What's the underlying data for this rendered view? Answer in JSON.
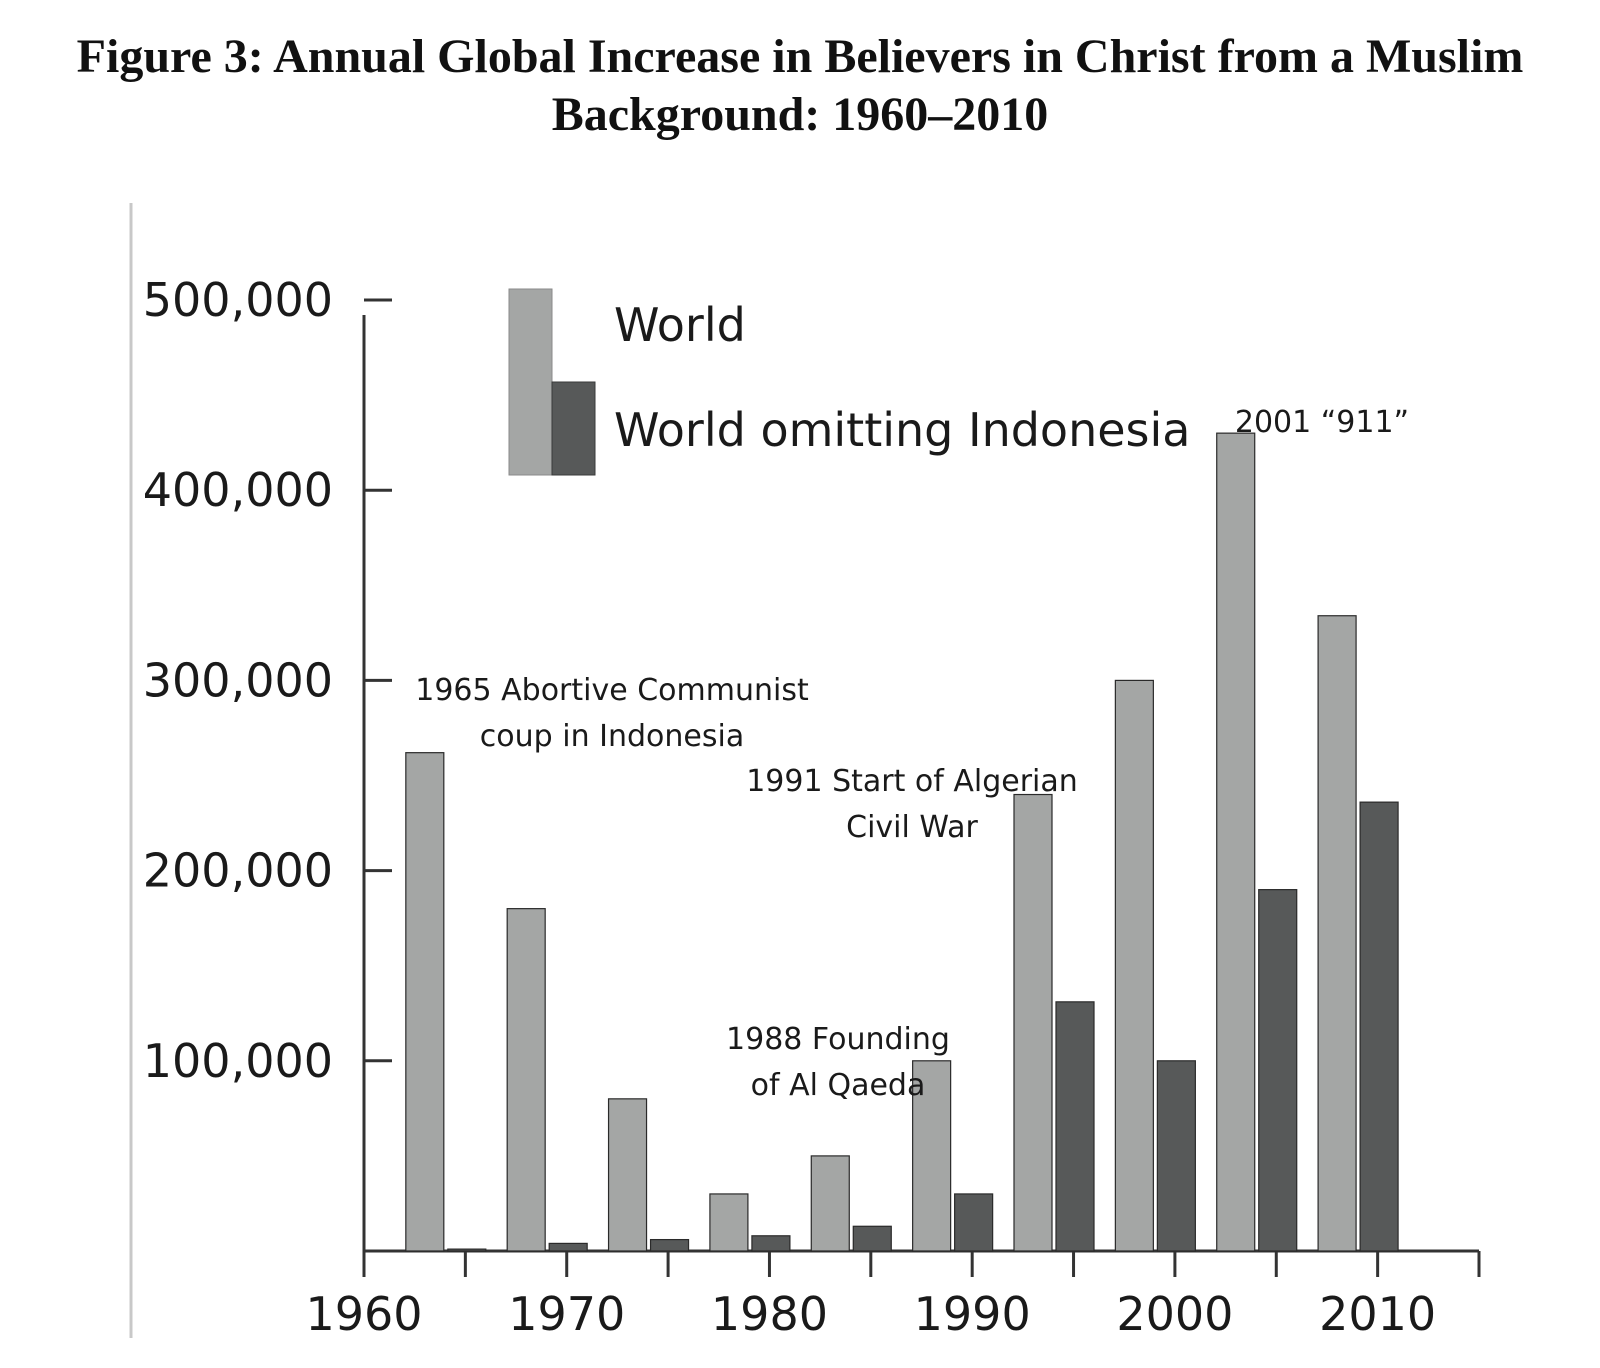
{
  "title": {
    "line1": "Figure 3: Annual Global Increase in Believers in Christ from a Muslim",
    "line2": "Background: 1960–2010"
  },
  "chart_data": {
    "type": "bar",
    "x": [
      1963,
      1968,
      1973,
      1978,
      1983,
      1988,
      1993,
      1998,
      2003,
      2008
    ],
    "series": [
      {
        "name": "World",
        "color": "#a4a6a5",
        "values": [
          262000,
          180000,
          80000,
          30000,
          50000,
          100000,
          240000,
          300000,
          430000,
          334000
        ]
      },
      {
        "name": "World omitting Indonesia",
        "color": "#575959",
        "values": [
          1000,
          4000,
          6000,
          8000,
          13000,
          30000,
          131000,
          100000,
          190000,
          236000
        ]
      }
    ],
    "xlim": [
      1960,
      2015
    ],
    "ylim": [
      0,
      500000
    ],
    "x_ticks": [
      "1960",
      "1970",
      "1980",
      "1990",
      "2000",
      "2010"
    ],
    "y_ticks": [
      "100,000",
      "200,000",
      "300,000",
      "400,000",
      "500,000"
    ],
    "legend_position": "top-left",
    "grid": false,
    "annotations": [
      {
        "lines": [
          "1965 Abortive Communist",
          "coup in Indonesia"
        ]
      },
      {
        "lines": [
          "1988 Founding",
          "of Al Qaeda"
        ]
      },
      {
        "lines": [
          "1991 Start of Algerian",
          "Civil War"
        ]
      },
      {
        "lines": [
          "2001 “911”"
        ]
      }
    ]
  }
}
